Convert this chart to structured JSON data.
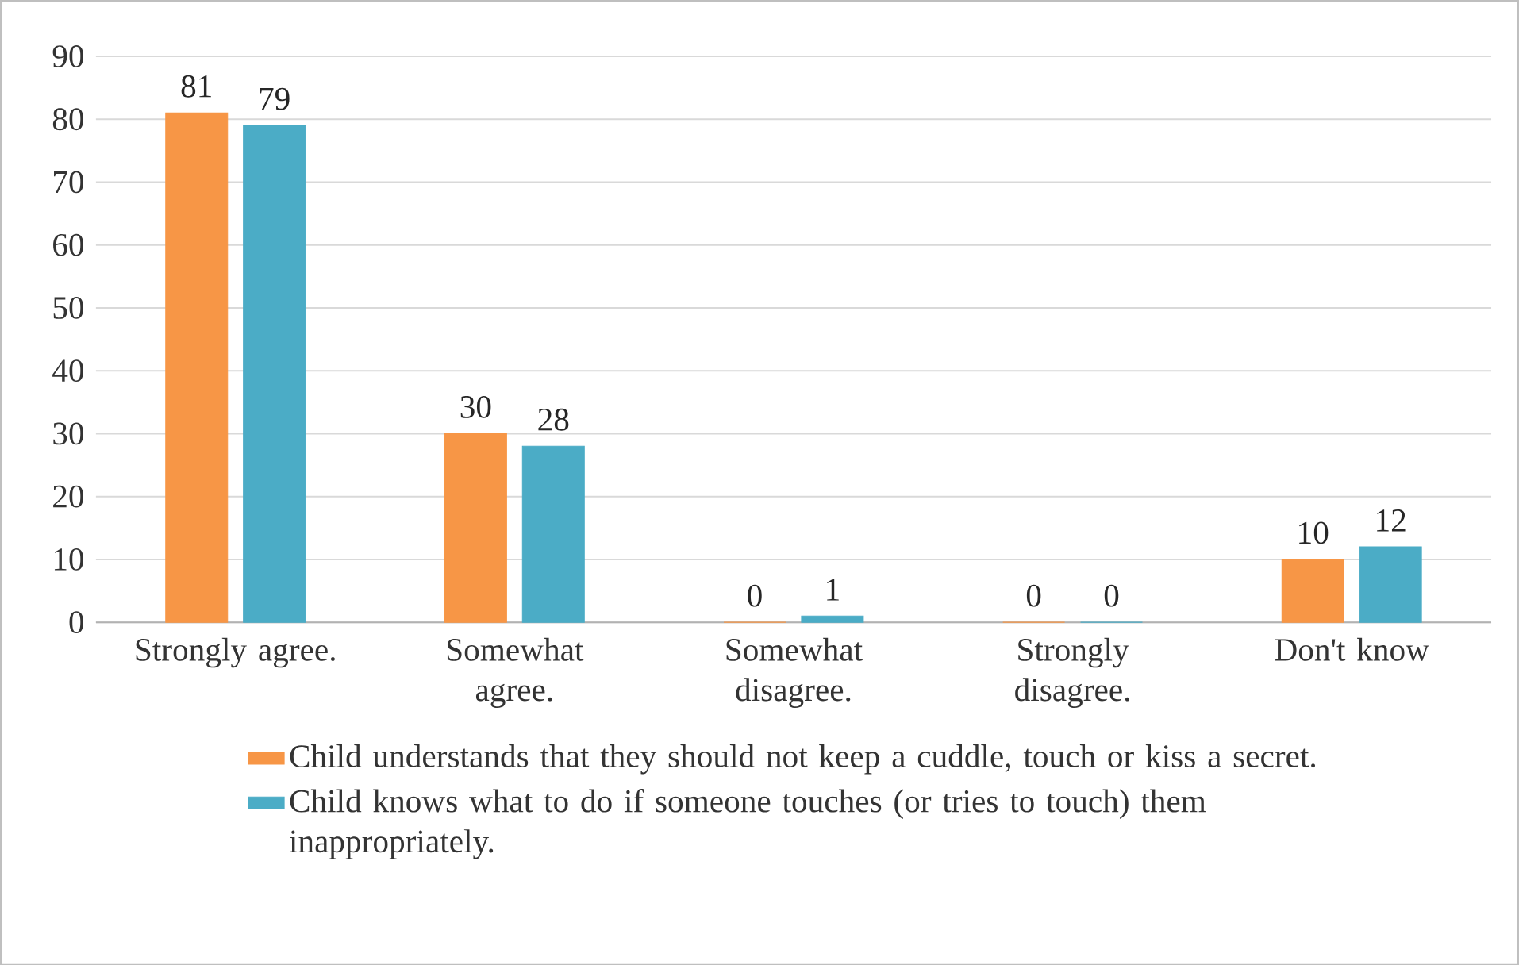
{
  "chart_data": {
    "type": "bar",
    "categories": [
      "Strongly agree.",
      "Somewhat agree.",
      "Somewhat disagree.",
      "Strongly disagree.",
      "Don't know"
    ],
    "series": [
      {
        "name": "Child understands that they should not keep a cuddle, touch or kiss a secret.",
        "color": "#f79646",
        "values": [
          81,
          30,
          0,
          0,
          10
        ]
      },
      {
        "name": "Child knows what to do if someone touches (or tries to touch) them inappropriately.",
        "color": "#4bacc6",
        "values": [
          79,
          28,
          1,
          0,
          12
        ]
      }
    ],
    "ylim": [
      0,
      90
    ],
    "yticks": [
      0,
      10,
      20,
      30,
      40,
      50,
      60,
      70,
      80,
      90
    ],
    "grid": "y",
    "legend": "bottom",
    "data_labels": true
  }
}
